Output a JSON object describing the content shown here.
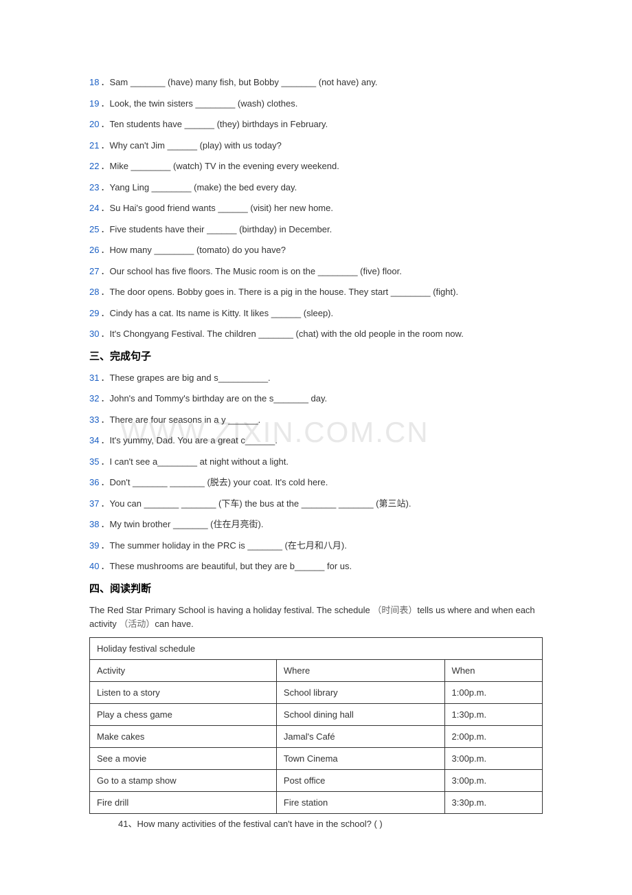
{
  "questions_fill": [
    {
      "num": "18",
      "text": "Sam _______ (have) many fish, but Bobby _______ (not have) any."
    },
    {
      "num": "19",
      "text": "Look, the twin sisters ________ (wash) clothes."
    },
    {
      "num": "20",
      "text": "Ten students have ______ (they) birthdays in February."
    },
    {
      "num": "21",
      "text": "Why can't Jim ______ (play) with us today?"
    },
    {
      "num": "22",
      "text": "Mike ________ (watch) TV in the evening every weekend."
    },
    {
      "num": "23",
      "text": "Yang Ling ________ (make) the bed every day."
    },
    {
      "num": "24",
      "text": "Su Hai's good friend wants ______ (visit) her new home."
    },
    {
      "num": "25",
      "text": "Five students have their ______ (birthday) in December."
    },
    {
      "num": "26",
      "text": "How many ________ (tomato) do you have?"
    },
    {
      "num": "27",
      "text": "Our school has five floors. The Music room is on the ________ (five) floor."
    },
    {
      "num": "28",
      "text": "The door opens. Bobby goes in. There is a pig in the house. They start ________ (fight)."
    },
    {
      "num": "29",
      "text": "Cindy has a cat. Its name is Kitty. It likes ______ (sleep)."
    },
    {
      "num": "30",
      "text": "It's Chongyang Festival. The children _______ (chat) with the old people in the room now."
    }
  ],
  "section3_title": "三、完成句子",
  "questions_complete": [
    {
      "num": "31",
      "text": "These grapes are big and s__________."
    },
    {
      "num": "32",
      "text": "John's and Tommy's birthday are on the s_______ day."
    },
    {
      "num": "33",
      "text": "There are four seasons in a y ______."
    },
    {
      "num": "34",
      "text": "It's yummy, Dad. You are a great c______."
    },
    {
      "num": "35",
      "text": "I can't see a________ at night without a light."
    },
    {
      "num": "36",
      "text": "Don't _______ _______ (脱去) your coat. It's cold here."
    },
    {
      "num": "37",
      "text": "You can _______ _______ (下车) the bus at the _______ _______ (第三站)."
    },
    {
      "num": "38",
      "text": "My twin brother _______ (住在月亮街)."
    },
    {
      "num": "39",
      "text": "The summer holiday in the PRC is _______ (在七月和八月)."
    },
    {
      "num": "40",
      "text": "These mushrooms are beautiful, but they are b______ for us."
    }
  ],
  "section4_title": "四、阅读判断",
  "reading_intro_1": "The Red Star Primary School is having a holiday festival. The schedule ",
  "reading_intro_cn1": "（时间表）",
  "reading_intro_2": "tells us where and when each activity ",
  "reading_intro_cn2": "（活动）",
  "reading_intro_3": "can have.",
  "table": {
    "title": "Holiday festival schedule",
    "headers": [
      "Activity",
      "Where",
      "When"
    ],
    "rows": [
      [
        "Listen to a story",
        "School library",
        "1:00p.m."
      ],
      [
        "Play a chess game",
        "School dining hall",
        "1:30p.m."
      ],
      [
        "Make cakes",
        "Jamal's Café",
        "2:00p.m."
      ],
      [
        "See a movie",
        "Town Cinema",
        "3:00p.m."
      ],
      [
        "Go to a stamp show",
        "Post office",
        "3:00p.m."
      ],
      [
        "Fire drill",
        "Fire station",
        "3:30p.m."
      ]
    ]
  },
  "q41": "41、How many activities of the festival can't have in the school? (   )",
  "watermark": "WWW.ZIXIN.COM.CN"
}
